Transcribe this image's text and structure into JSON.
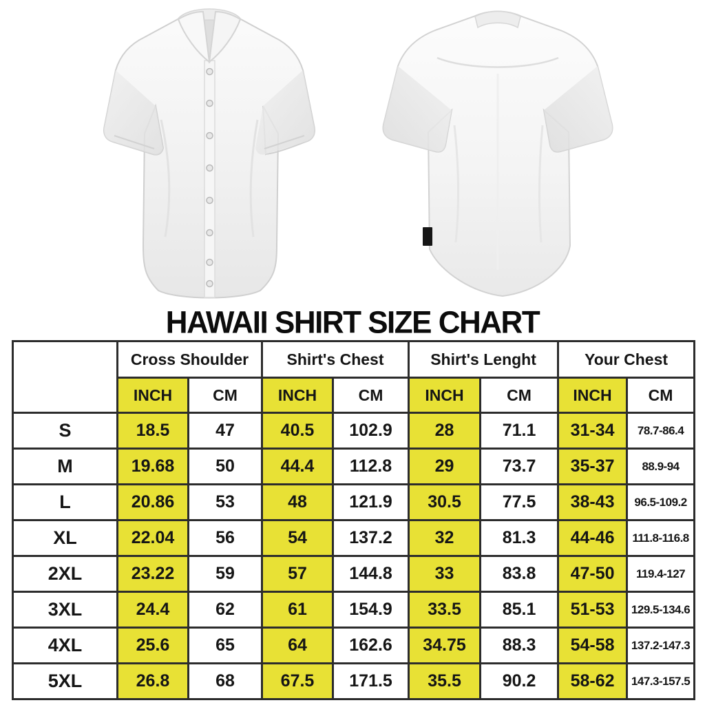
{
  "title": "HAWAII SHIRT SIZE CHART",
  "images": {
    "front_shirt": "white short-sleeve button-up shirt front view",
    "back_shirt": "white short-sleeve shirt back view with black hem tag"
  },
  "colors": {
    "highlight_yellow": "#e8e135",
    "grid_border": "#2c2c2c",
    "background": "#ffffff",
    "title_text": "#0c0c0c"
  },
  "chart_data": {
    "type": "table",
    "title": "HAWAII SHIRT SIZE CHART",
    "corner_label": "",
    "column_groups": [
      {
        "label": "Cross Shoulder",
        "columns": [
          "INCH",
          "CM"
        ]
      },
      {
        "label": "Shirt's Chest",
        "columns": [
          "INCH",
          "CM"
        ]
      },
      {
        "label": "Shirt's Lenght",
        "columns": [
          "INCH",
          "CM"
        ]
      },
      {
        "label": "Your Chest",
        "columns": [
          "INCH",
          "CM"
        ]
      }
    ],
    "rows": [
      {
        "size": "S",
        "values": [
          "18.5",
          "47",
          "40.5",
          "102.9",
          "28",
          "71.1",
          "31-34",
          "78.7-86.4"
        ]
      },
      {
        "size": "M",
        "values": [
          "19.68",
          "50",
          "44.4",
          "112.8",
          "29",
          "73.7",
          "35-37",
          "88.9-94"
        ]
      },
      {
        "size": "L",
        "values": [
          "20.86",
          "53",
          "48",
          "121.9",
          "30.5",
          "77.5",
          "38-43",
          "96.5-109.2"
        ]
      },
      {
        "size": "XL",
        "values": [
          "22.04",
          "56",
          "54",
          "137.2",
          "32",
          "81.3",
          "44-46",
          "111.8-116.8"
        ]
      },
      {
        "size": "2XL",
        "values": [
          "23.22",
          "59",
          "57",
          "144.8",
          "33",
          "83.8",
          "47-50",
          "119.4-127"
        ]
      },
      {
        "size": "3XL",
        "values": [
          "24.4",
          "62",
          "61",
          "154.9",
          "33.5",
          "85.1",
          "51-53",
          "129.5-134.6"
        ]
      },
      {
        "size": "4XL",
        "values": [
          "25.6",
          "65",
          "64",
          "162.6",
          "34.75",
          "88.3",
          "54-58",
          "137.2-147.3"
        ]
      },
      {
        "size": "5XL",
        "values": [
          "26.8",
          "68",
          "67.5",
          "171.5",
          "35.5",
          "90.2",
          "58-62",
          "147.3-157.5"
        ]
      }
    ],
    "highlight_note": "INCH columns have yellow background"
  }
}
